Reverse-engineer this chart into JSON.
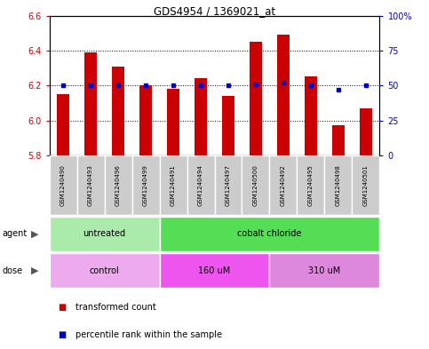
{
  "title": "GDS4954 / 1369021_at",
  "samples": [
    "GSM1240490",
    "GSM1240493",
    "GSM1240496",
    "GSM1240499",
    "GSM1240491",
    "GSM1240494",
    "GSM1240497",
    "GSM1240500",
    "GSM1240492",
    "GSM1240495",
    "GSM1240498",
    "GSM1240501"
  ],
  "bar_values": [
    6.15,
    6.39,
    6.31,
    6.2,
    6.18,
    6.24,
    6.14,
    6.45,
    6.49,
    6.25,
    5.97,
    6.07
  ],
  "dot_values": [
    50,
    50,
    50,
    50,
    50,
    50,
    50,
    51,
    52,
    50,
    47,
    50
  ],
  "bar_bottom": 5.8,
  "ylim_left": [
    5.8,
    6.6
  ],
  "ylim_right": [
    0,
    100
  ],
  "yticks_left": [
    5.8,
    6.0,
    6.2,
    6.4,
    6.6
  ],
  "yticks_right": [
    0,
    25,
    50,
    75,
    100
  ],
  "ytick_labels_right": [
    "0",
    "25",
    "50",
    "75",
    "100%"
  ],
  "bar_color": "#cc0000",
  "dot_color": "#0000cc",
  "agent_groups": [
    {
      "label": "untreated",
      "start": 0,
      "end": 4,
      "color": "#aaeaaa"
    },
    {
      "label": "cobalt chloride",
      "start": 4,
      "end": 12,
      "color": "#55dd55"
    }
  ],
  "dose_groups": [
    {
      "label": "control",
      "start": 0,
      "end": 4,
      "color": "#eeaaee"
    },
    {
      "label": "160 uM",
      "start": 4,
      "end": 8,
      "color": "#ee55ee"
    },
    {
      "label": "310 uM",
      "start": 8,
      "end": 12,
      "color": "#dd88dd"
    }
  ],
  "legend_items": [
    {
      "label": "transformed count",
      "color": "#cc0000"
    },
    {
      "label": "percentile rank within the sample",
      "color": "#0000cc"
    }
  ],
  "sample_box_color": "#cccccc",
  "bar_width": 0.45
}
